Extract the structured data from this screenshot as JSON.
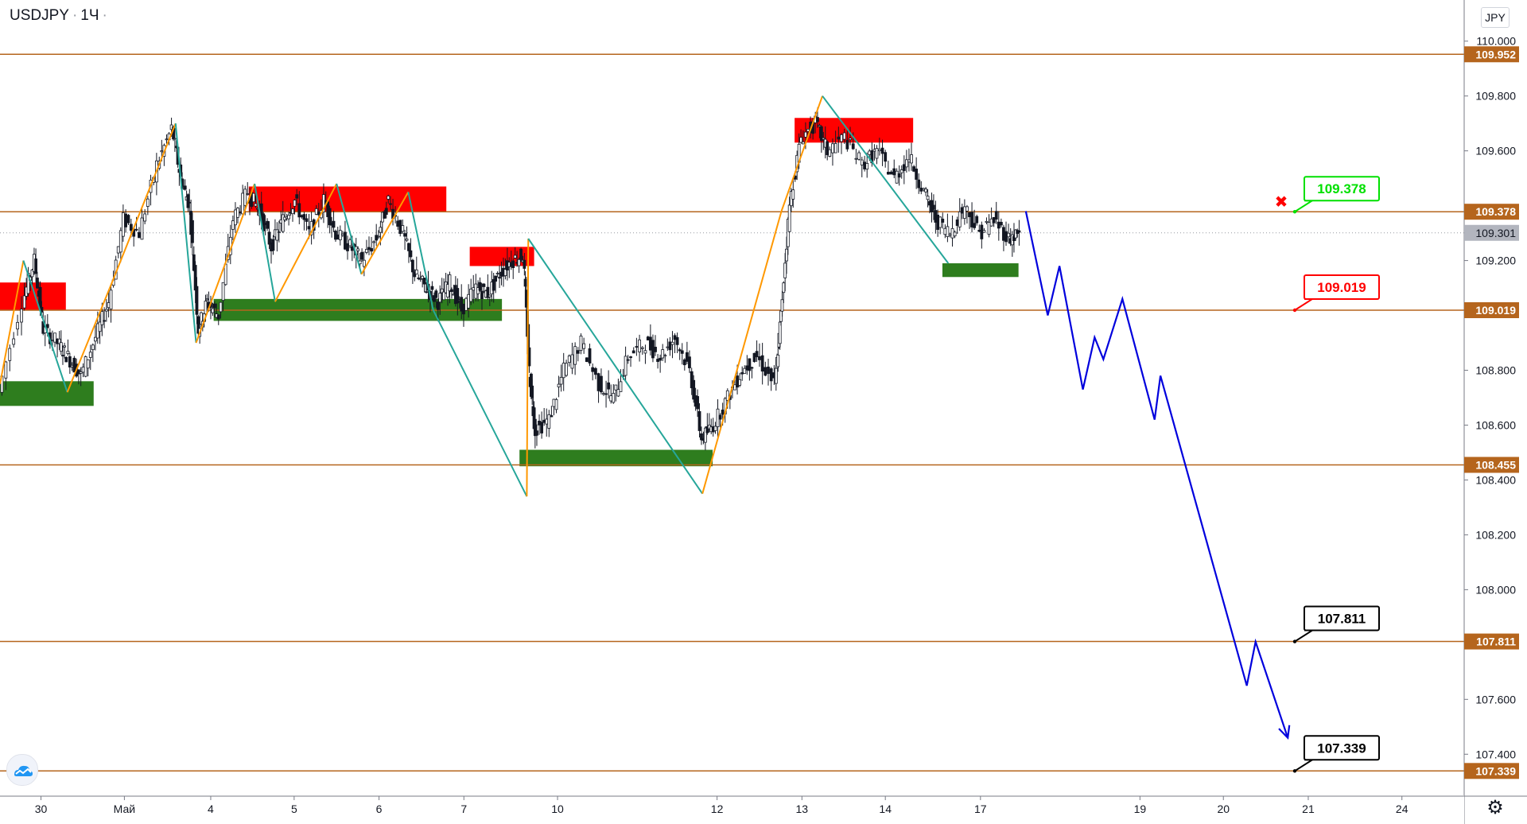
{
  "header": {
    "symbol": "USDJPY",
    "interval": "1Ч",
    "currency": "JPY"
  },
  "colors": {
    "level_line": "#b5651d",
    "level_label_bg": "#b5651d",
    "current_label_bg": "#b2b5be",
    "supply_zone": "#ff0000",
    "demand_zone": "#2e7d1e",
    "zigzag_orange": "#ff9800",
    "zigzag_teal": "#26a69a",
    "forecast": "#0000dd",
    "label_green": "#00e000",
    "label_red": "#ff0000",
    "label_black": "#000000"
  },
  "chart_data": {
    "type": "line",
    "ylim": [
      107.25,
      110.15
    ],
    "xlim": [
      0,
      1
    ],
    "x_ticks": [
      {
        "label": "30",
        "x": 0.028
      },
      {
        "label": "Май",
        "x": 0.085
      },
      {
        "label": "4",
        "x": 0.144
      },
      {
        "label": "5",
        "x": 0.201
      },
      {
        "label": "6",
        "x": 0.259
      },
      {
        "label": "7",
        "x": 0.317
      },
      {
        "label": "10",
        "x": 0.381
      },
      {
        "label": "12",
        "x": 0.49
      },
      {
        "label": "13",
        "x": 0.548
      },
      {
        "label": "14",
        "x": 0.605
      },
      {
        "label": "17",
        "x": 0.67
      },
      {
        "label": "19",
        "x": 0.779
      },
      {
        "label": "20",
        "x": 0.836
      },
      {
        "label": "21",
        "x": 0.894
      },
      {
        "label": "24",
        "x": 0.958
      }
    ],
    "y_ticks": [
      "110.000",
      "109.800",
      "109.600",
      "109.200",
      "108.800",
      "108.600",
      "108.400",
      "108.200",
      "108.000",
      "107.600",
      "107.400"
    ],
    "price_levels": [
      {
        "value": 109.952,
        "label": "109.952"
      },
      {
        "value": 109.378,
        "label": "109.378"
      },
      {
        "value": 109.019,
        "label": "109.019"
      },
      {
        "value": 108.455,
        "label": "108.455"
      },
      {
        "value": 107.811,
        "label": "107.811"
      },
      {
        "value": 107.339,
        "label": "107.339"
      }
    ],
    "current_price": {
      "value": 109.301,
      "label": "109.301"
    },
    "zones": [
      {
        "kind": "supply",
        "x0": 0.0,
        "x1": 0.045,
        "y0": 109.02,
        "y1": 109.12
      },
      {
        "kind": "demand",
        "x0": 0.0,
        "x1": 0.064,
        "y0": 108.67,
        "y1": 108.76
      },
      {
        "kind": "supply",
        "x0": 0.17,
        "x1": 0.305,
        "y0": 109.38,
        "y1": 109.47
      },
      {
        "kind": "demand",
        "x0": 0.146,
        "x1": 0.343,
        "y0": 108.98,
        "y1": 109.06
      },
      {
        "kind": "supply",
        "x0": 0.321,
        "x1": 0.365,
        "y0": 109.18,
        "y1": 109.25
      },
      {
        "kind": "demand",
        "x0": 0.355,
        "x1": 0.487,
        "y0": 108.45,
        "y1": 108.51
      },
      {
        "kind": "supply",
        "x0": 0.543,
        "x1": 0.624,
        "y0": 109.63,
        "y1": 109.72
      },
      {
        "kind": "demand",
        "x0": 0.644,
        "x1": 0.696,
        "y0": 109.14,
        "y1": 109.19
      }
    ],
    "series": [
      {
        "kind": "price",
        "x": [
          0.0,
          0.016,
          0.024,
          0.03,
          0.04,
          0.047,
          0.056,
          0.066,
          0.075,
          0.085,
          0.096,
          0.108,
          0.118,
          0.124,
          0.13,
          0.136,
          0.142,
          0.15,
          0.16,
          0.17,
          0.178,
          0.186,
          0.194,
          0.202,
          0.212,
          0.222,
          0.23,
          0.24,
          0.248,
          0.258,
          0.266,
          0.276,
          0.284,
          0.292,
          0.3,
          0.308,
          0.316,
          0.326,
          0.334,
          0.342,
          0.35,
          0.358,
          0.362,
          0.366,
          0.376,
          0.386,
          0.398,
          0.41,
          0.42,
          0.43,
          0.442,
          0.452,
          0.462,
          0.472,
          0.48,
          0.488,
          0.498,
          0.508,
          0.518,
          0.53,
          0.534,
          0.54,
          0.548,
          0.558,
          0.566,
          0.578,
          0.59,
          0.6,
          0.612,
          0.622,
          0.632,
          0.64,
          0.65,
          0.66,
          0.67,
          0.68,
          0.69,
          0.697
        ],
        "y": [
          108.72,
          109.05,
          109.2,
          108.95,
          108.9,
          108.85,
          108.78,
          108.92,
          109.05,
          109.35,
          109.3,
          109.55,
          109.68,
          109.5,
          109.4,
          108.95,
          109.05,
          109.0,
          109.35,
          109.45,
          109.38,
          109.25,
          109.35,
          109.42,
          109.3,
          109.42,
          109.3,
          109.25,
          109.2,
          109.28,
          109.42,
          109.3,
          109.15,
          109.1,
          109.05,
          109.12,
          109.02,
          109.1,
          109.08,
          109.15,
          109.2,
          109.22,
          108.8,
          108.58,
          108.62,
          108.8,
          108.9,
          108.75,
          108.7,
          108.85,
          108.9,
          108.85,
          108.92,
          108.8,
          108.55,
          108.6,
          108.7,
          108.8,
          108.85,
          108.75,
          109.0,
          109.4,
          109.65,
          109.7,
          109.6,
          109.65,
          109.55,
          109.6,
          109.5,
          109.58,
          109.45,
          109.35,
          109.3,
          109.4,
          109.3,
          109.35,
          109.28,
          109.3
        ]
      },
      {
        "kind": "zigzag",
        "x": [
          0.0,
          0.016,
          0.046,
          0.075,
          0.12,
          0.134,
          0.174,
          0.188,
          0.23,
          0.247,
          0.279,
          0.296,
          0.36,
          0.361,
          0.48,
          0.534,
          0.562,
          0.648
        ],
        "y": [
          108.75,
          109.2,
          108.72,
          109.1,
          109.7,
          108.9,
          109.48,
          109.05,
          109.48,
          109.15,
          109.45,
          109.02,
          108.34,
          109.28,
          108.35,
          109.38,
          109.8,
          109.19
        ]
      },
      {
        "kind": "forecast",
        "x": [
          0.701,
          0.716,
          0.724,
          0.74,
          0.748,
          0.754,
          0.767,
          0.789,
          0.793,
          0.852,
          0.858,
          0.88
        ],
        "y": [
          109.38,
          109.0,
          109.18,
          108.73,
          108.92,
          108.84,
          109.06,
          108.62,
          108.78,
          107.65,
          107.81,
          107.46
        ]
      }
    ],
    "callouts": [
      {
        "text": "109.378",
        "value": 109.378,
        "style": "green"
      },
      {
        "text": "109.019",
        "value": 109.019,
        "style": "red"
      },
      {
        "text": "107.811",
        "value": 107.811,
        "style": "black"
      },
      {
        "text": "107.339",
        "value": 107.339,
        "style": "black"
      }
    ],
    "marker": {
      "symbol": "✖",
      "value": 109.4
    },
    "grid": false,
    "legend": "none"
  },
  "footer": {
    "settings_icon": "gear-icon",
    "logo_icon": "cloud-logo-icon"
  }
}
